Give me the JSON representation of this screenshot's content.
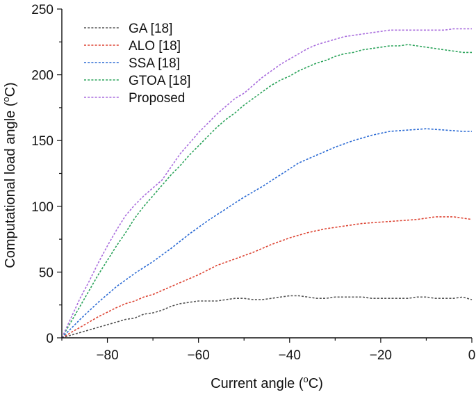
{
  "chart_data": {
    "type": "line",
    "title": "",
    "xlabel": "Current angle (",
    "xlabel_sup": "o",
    "xlabel_tail": "C)",
    "ylabel": "Computational load angle (",
    "ylabel_sup": "o",
    "ylabel_tail": "C)",
    "xlim": [
      -90,
      0
    ],
    "ylim": [
      0,
      250
    ],
    "xticks": [
      -80,
      -60,
      -40,
      -20,
      0
    ],
    "xtick_labels": [
      "−80",
      "−60",
      "−40",
      "−20",
      "0"
    ],
    "yticks": [
      0,
      50,
      100,
      150,
      200,
      250
    ],
    "ytick_labels": [
      "0",
      "50",
      "100",
      "150",
      "200",
      "250"
    ],
    "x_minor_step": 10,
    "y_minor_step": 25,
    "legend_position": "top-left",
    "series": [
      {
        "name": "GA [18]",
        "color": "#555555",
        "x": [
          -90,
          -86,
          -82,
          -78,
          -76,
          -74,
          -72,
          -70,
          -68,
          -66,
          -64,
          -62,
          -60,
          -58,
          -56,
          -54,
          -52,
          -50,
          -48,
          -46,
          -44,
          -42,
          -40,
          -38,
          -36,
          -34,
          -32,
          -30,
          -28,
          -26,
          -24,
          -22,
          -20,
          -18,
          -16,
          -14,
          -12,
          -10,
          -8,
          -6,
          -4,
          -2,
          0
        ],
        "values": [
          0,
          4,
          8,
          12,
          14,
          15,
          18,
          19,
          21,
          24,
          26,
          27,
          28,
          28,
          28,
          29,
          30,
          30,
          29,
          29,
          30,
          31,
          32,
          32,
          31,
          30,
          30,
          31,
          31,
          31,
          31,
          30,
          30,
          30,
          30,
          30,
          31,
          31,
          30,
          30,
          30,
          31,
          29
        ]
      },
      {
        "name": "ALO [18]",
        "color": "#dd4433",
        "x": [
          -90,
          -86,
          -82,
          -78,
          -76,
          -74,
          -72,
          -70,
          -68,
          -64,
          -60,
          -56,
          -52,
          -48,
          -44,
          -40,
          -36,
          -32,
          -28,
          -24,
          -20,
          -16,
          -12,
          -8,
          -4,
          0
        ],
        "values": [
          0,
          8,
          16,
          23,
          26,
          28,
          31,
          33,
          36,
          42,
          48,
          55,
          60,
          65,
          71,
          76,
          80,
          83,
          85,
          87,
          88,
          89,
          90,
          92,
          92,
          90
        ]
      },
      {
        "name": "SSA [18]",
        "color": "#2a6ad4",
        "x": [
          -90,
          -86,
          -82,
          -78,
          -74,
          -70,
          -66,
          -62,
          -58,
          -54,
          -50,
          -46,
          -42,
          -38,
          -34,
          -30,
          -26,
          -22,
          -18,
          -14,
          -10,
          -6,
          -2,
          0
        ],
        "values": [
          0,
          14,
          27,
          39,
          49,
          58,
          68,
          79,
          89,
          98,
          107,
          115,
          124,
          133,
          139,
          145,
          150,
          154,
          157,
          158,
          159,
          158,
          157,
          157
        ]
      },
      {
        "name": "GTOA [18]",
        "color": "#2aa35a",
        "x": [
          -90,
          -88,
          -86,
          -84,
          -82,
          -80,
          -78,
          -76,
          -74,
          -72,
          -70,
          -68,
          -66,
          -64,
          -62,
          -60,
          -58,
          -56,
          -54,
          -52,
          -50,
          -48,
          -46,
          -44,
          -42,
          -40,
          -38,
          -36,
          -34,
          -32,
          -30,
          -28,
          -26,
          -24,
          -22,
          -20,
          -18,
          -16,
          -14,
          -12,
          -10,
          -8,
          -6,
          -4,
          -2,
          0
        ],
        "values": [
          0,
          12,
          24,
          36,
          48,
          59,
          70,
          80,
          91,
          100,
          108,
          116,
          124,
          131,
          139,
          146,
          153,
          160,
          166,
          171,
          177,
          182,
          187,
          192,
          196,
          199,
          203,
          206,
          209,
          211,
          214,
          216,
          217,
          219,
          220,
          221,
          222,
          222,
          223,
          222,
          221,
          220,
          219,
          218,
          217,
          217
        ]
      },
      {
        "name": "Proposed",
        "color": "#a86cdd",
        "x": [
          -90,
          -88,
          -86,
          -84,
          -82,
          -80,
          -78,
          -76,
          -74,
          -72,
          -70,
          -68,
          -66,
          -64,
          -62,
          -60,
          -58,
          -56,
          -54,
          -52,
          -50,
          -48,
          -46,
          -44,
          -42,
          -40,
          -38,
          -36,
          -34,
          -32,
          -30,
          -28,
          -26,
          -24,
          -22,
          -20,
          -18,
          -16,
          -14,
          -12,
          -10,
          -8,
          -6,
          -4,
          -2,
          0
        ],
        "values": [
          0,
          15,
          30,
          43,
          57,
          70,
          82,
          93,
          101,
          108,
          114,
          120,
          130,
          140,
          148,
          156,
          163,
          170,
          176,
          182,
          186,
          192,
          198,
          203,
          208,
          212,
          216,
          220,
          223,
          225,
          227,
          229,
          230,
          231,
          232,
          233,
          234,
          234,
          234,
          234,
          234,
          234,
          234,
          235,
          235,
          235
        ]
      }
    ]
  }
}
